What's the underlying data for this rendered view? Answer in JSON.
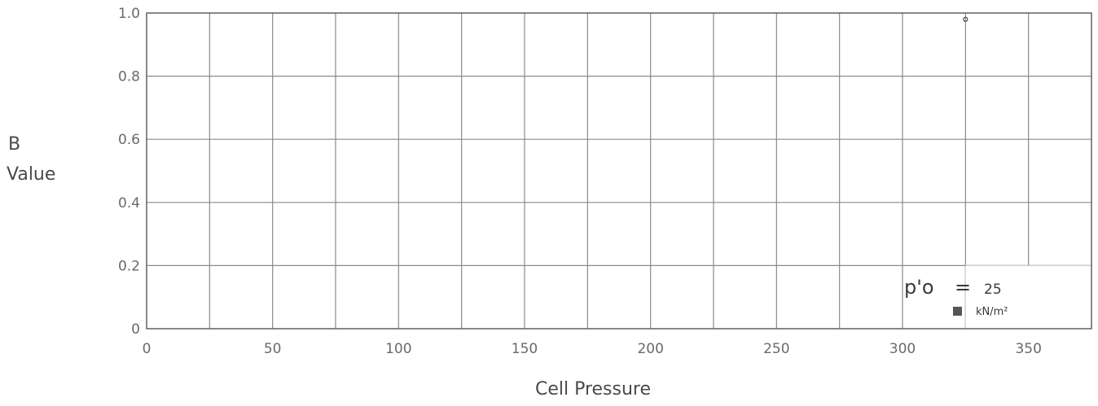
{
  "chart_data": {
    "type": "scatter",
    "title": "",
    "xlabel": "Cell Pressure",
    "ylabel_line1": "B",
    "ylabel_line2": "Value",
    "xlim": [
      0,
      375
    ],
    "ylim": [
      0,
      1.0
    ],
    "x_ticks": [
      0,
      50,
      100,
      150,
      200,
      250,
      300,
      350
    ],
    "x_tick_labels": [
      "0",
      "50",
      "100",
      "150",
      "200",
      "250",
      "300",
      "350"
    ],
    "x_minor_grid": [
      25,
      75,
      125,
      175,
      225,
      275,
      325
    ],
    "y_ticks": [
      0,
      0.2,
      0.4,
      0.6,
      0.8,
      1.0
    ],
    "y_tick_labels": [
      "0",
      "0.2",
      "0.4",
      "0.6",
      "0.8",
      "1.0"
    ],
    "grid": true,
    "series": [
      {
        "name": "25",
        "marker": "square",
        "color": "#444444",
        "x": [
          325
        ],
        "y": [
          0.98
        ]
      }
    ],
    "legend": {
      "placement": "bottom-right",
      "title_text": "p'o",
      "equals": "=",
      "value": "25",
      "unit": "kN/m²"
    }
  }
}
